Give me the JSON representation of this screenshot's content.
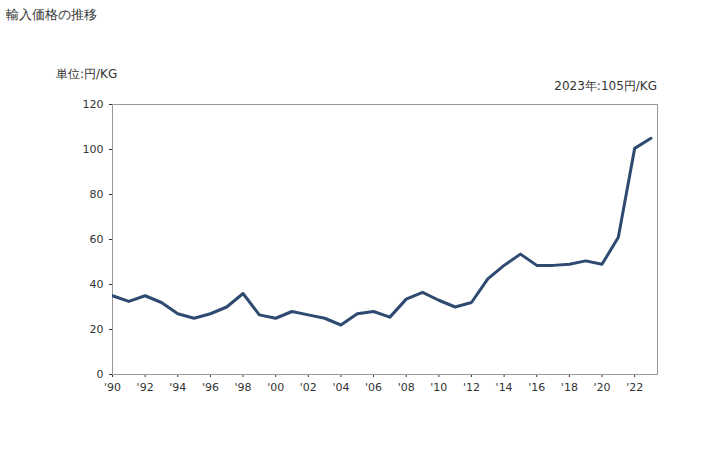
{
  "chart_data": {
    "type": "line",
    "title": "輸入価格の推移",
    "ylabel": "単位:円/KG",
    "annotation": "2023年:105円/KG",
    "x": [
      1990,
      1991,
      1992,
      1993,
      1994,
      1995,
      1996,
      1997,
      1998,
      1999,
      2000,
      2001,
      2002,
      2003,
      2004,
      2005,
      2006,
      2007,
      2008,
      2009,
      2010,
      2011,
      2012,
      2013,
      2014,
      2015,
      2016,
      2017,
      2018,
      2019,
      2020,
      2021,
      2022,
      2023
    ],
    "values": [
      35,
      32.5,
      35,
      32,
      27,
      25,
      27,
      30,
      36,
      26.5,
      25,
      28,
      26.5,
      25,
      22,
      27,
      28,
      25.5,
      33.5,
      36.5,
      33,
      30,
      32,
      42.5,
      48.5,
      53.5,
      48.5,
      48.5,
      49,
      50.5,
      49,
      61,
      100.5,
      105
    ],
    "color": "#2f4a70",
    "xlim": [
      1990,
      2023.4
    ],
    "xticks": [
      {
        "value": 1990,
        "label": "'90"
      },
      {
        "value": 1992,
        "label": "'92"
      },
      {
        "value": 1994,
        "label": "'94"
      },
      {
        "value": 1996,
        "label": "'96"
      },
      {
        "value": 1998,
        "label": "'98"
      },
      {
        "value": 2000,
        "label": "'00"
      },
      {
        "value": 2002,
        "label": "'02"
      },
      {
        "value": 2004,
        "label": "'04"
      },
      {
        "value": 2006,
        "label": "'06"
      },
      {
        "value": 2008,
        "label": "'08"
      },
      {
        "value": 2010,
        "label": "'10"
      },
      {
        "value": 2012,
        "label": "'12"
      },
      {
        "value": 2014,
        "label": "'14"
      },
      {
        "value": 2016,
        "label": "'16"
      },
      {
        "value": 2018,
        "label": "'18"
      },
      {
        "value": 2020,
        "label": "'20"
      },
      {
        "value": 2022,
        "label": "'22"
      }
    ],
    "ylim": [
      0,
      120
    ],
    "yticks": [
      0,
      20,
      40,
      60,
      80,
      100,
      120
    ],
    "grid": false
  }
}
